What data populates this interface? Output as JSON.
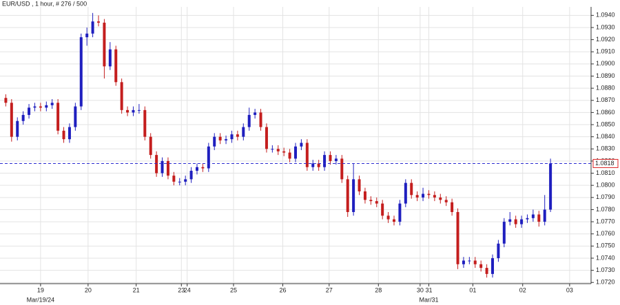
{
  "chart_data": {
    "type": "candlestick",
    "title": "EUR/USD , 1 hour, # 276 / 500",
    "up_color": "#1f1fbf",
    "down_color": "#c41e1e",
    "grid": true,
    "last_price": 1.0818,
    "last_price_color": "#2a2ad0",
    "xlim": [
      -1,
      101
    ],
    "ylim": [
      1.0719,
      1.0947
    ],
    "xticks": [
      {
        "value": 6.0,
        "label": "19"
      },
      {
        "value": 14.2,
        "label": "20"
      },
      {
        "value": 22.5,
        "label": "21"
      },
      {
        "value": 30.3,
        "label": "23"
      },
      {
        "value": 31.3,
        "label": "24"
      },
      {
        "value": 39.3,
        "label": "25"
      },
      {
        "value": 47.8,
        "label": "26"
      },
      {
        "value": 55.8,
        "label": "27"
      },
      {
        "value": 64.3,
        "label": "28"
      },
      {
        "value": 71.5,
        "label": "30"
      },
      {
        "value": 73.0,
        "label": "31"
      },
      {
        "value": 80.6,
        "label": "01"
      },
      {
        "value": 89.2,
        "label": "02"
      },
      {
        "value": 97.3,
        "label": "03"
      }
    ],
    "xticks2": [
      {
        "value": 6.0,
        "label": "Mar/19/24"
      },
      {
        "value": 73.0,
        "label": "Mar/31"
      }
    ],
    "yticks": [
      {
        "value": 1.072,
        "label": "1.0720"
      },
      {
        "value": 1.073,
        "label": "1.0730"
      },
      {
        "value": 1.074,
        "label": "1.0740"
      },
      {
        "value": 1.075,
        "label": "1.0750"
      },
      {
        "value": 1.076,
        "label": "1.0760"
      },
      {
        "value": 1.077,
        "label": "1.0770"
      },
      {
        "value": 1.078,
        "label": "1.0780"
      },
      {
        "value": 1.079,
        "label": "1.0790"
      },
      {
        "value": 1.08,
        "label": "1.0800"
      },
      {
        "value": 1.081,
        "label": "1.0810"
      },
      {
        "value": 1.082,
        "label": "1.0820"
      },
      {
        "value": 1.083,
        "label": "1.0830"
      },
      {
        "value": 1.084,
        "label": "1.0840"
      },
      {
        "value": 1.085,
        "label": "1.0850"
      },
      {
        "value": 1.086,
        "label": "1.0860"
      },
      {
        "value": 1.087,
        "label": "1.0870"
      },
      {
        "value": 1.088,
        "label": "1.0880"
      },
      {
        "value": 1.089,
        "label": "1.0890"
      },
      {
        "value": 1.09,
        "label": "1.0900"
      },
      {
        "value": 1.091,
        "label": "1.0910"
      },
      {
        "value": 1.092,
        "label": "1.0920"
      },
      {
        "value": 1.093,
        "label": "1.0930"
      },
      {
        "value": 1.094,
        "label": "1.0940"
      }
    ],
    "candles": [
      [
        1.0872,
        1.0875,
        1.0865,
        1.0868
      ],
      [
        1.0868,
        1.0871,
        1.0836,
        1.084
      ],
      [
        1.084,
        1.0856,
        1.0837,
        1.0853
      ],
      [
        1.0853,
        1.0861,
        1.085,
        1.0858
      ],
      [
        1.0858,
        1.0867,
        1.0855,
        1.0864
      ],
      [
        1.0864,
        1.0868,
        1.0861,
        1.0865
      ],
      [
        1.0865,
        1.0868,
        1.0861,
        1.0864
      ],
      [
        1.0864,
        1.0869,
        1.0861,
        1.0866
      ],
      [
        1.0866,
        1.0871,
        1.0863,
        1.0868
      ],
      [
        1.0868,
        1.0871,
        1.0842,
        1.0845
      ],
      [
        1.0845,
        1.0848,
        1.0835,
        1.0838
      ],
      [
        1.0838,
        1.0851,
        1.0835,
        1.0848
      ],
      [
        1.0848,
        1.0868,
        1.0845,
        1.0865
      ],
      [
        1.0865,
        1.0925,
        1.0862,
        1.0922
      ],
      [
        1.0922,
        1.093,
        1.0915,
        1.0925
      ],
      [
        1.0925,
        1.0942,
        1.0922,
        1.0935
      ],
      [
        1.0935,
        1.094,
        1.0931,
        1.0934
      ],
      [
        1.0934,
        1.0937,
        1.0888,
        1.0898
      ],
      [
        1.0898,
        1.0918,
        1.0895,
        1.0912
      ],
      [
        1.0912,
        1.0915,
        1.0882,
        1.0885
      ],
      [
        1.0885,
        1.0888,
        1.0859,
        1.0862
      ],
      [
        1.0862,
        1.0865,
        1.0857,
        1.086
      ],
      [
        1.086,
        1.0865,
        1.0857,
        1.0862
      ],
      [
        1.0862,
        1.0867,
        1.0859,
        1.0862
      ],
      [
        1.0862,
        1.0865,
        1.0837,
        1.084
      ],
      [
        1.084,
        1.0843,
        1.0822,
        1.0825
      ],
      [
        1.0825,
        1.0828,
        1.0807,
        1.081
      ],
      [
        1.081,
        1.0823,
        1.0807,
        1.082
      ],
      [
        1.082,
        1.0823,
        1.0805,
        1.0808
      ],
      [
        1.0808,
        1.0811,
        1.08,
        1.0803
      ],
      [
        1.0803,
        1.0806,
        1.08,
        1.0803
      ],
      [
        1.0803,
        1.0808,
        1.08,
        1.0805
      ],
      [
        1.0805,
        1.0815,
        1.0802,
        1.0812
      ],
      [
        1.0812,
        1.0818,
        1.0809,
        1.0815
      ],
      [
        1.0815,
        1.0818,
        1.0811,
        1.0814
      ],
      [
        1.0814,
        1.0835,
        1.0811,
        1.0832
      ],
      [
        1.0832,
        1.0843,
        1.0829,
        1.084
      ],
      [
        1.084,
        1.0843,
        1.0834,
        1.0837
      ],
      [
        1.0837,
        1.0841,
        1.0834,
        1.0838
      ],
      [
        1.0838,
        1.0845,
        1.0835,
        1.0842
      ],
      [
        1.0842,
        1.0845,
        1.0837,
        1.084
      ],
      [
        1.084,
        1.0851,
        1.0837,
        1.0848
      ],
      [
        1.0848,
        1.0864,
        1.0845,
        1.0858
      ],
      [
        1.0858,
        1.0863,
        1.0855,
        1.086
      ],
      [
        1.086,
        1.0863,
        1.0845,
        1.0848
      ],
      [
        1.0848,
        1.0851,
        1.0827,
        1.083
      ],
      [
        1.083,
        1.0833,
        1.0827,
        1.083
      ],
      [
        1.083,
        1.0833,
        1.0825,
        1.0828
      ],
      [
        1.0828,
        1.0831,
        1.0824,
        1.0827
      ],
      [
        1.0827,
        1.083,
        1.0819,
        1.0822
      ],
      [
        1.0822,
        1.0835,
        1.0819,
        1.0832
      ],
      [
        1.0832,
        1.0838,
        1.0829,
        1.0835
      ],
      [
        1.0835,
        1.0838,
        1.0812,
        1.0815
      ],
      [
        1.0815,
        1.0821,
        1.0812,
        1.0818
      ],
      [
        1.0818,
        1.0821,
        1.0812,
        1.0815
      ],
      [
        1.0815,
        1.0828,
        1.0812,
        1.0825
      ],
      [
        1.0825,
        1.0828,
        1.0817,
        1.082
      ],
      [
        1.082,
        1.0825,
        1.0817,
        1.0822
      ],
      [
        1.0822,
        1.0825,
        1.0802,
        1.0805
      ],
      [
        1.0805,
        1.0808,
        1.0774,
        1.0778
      ],
      [
        1.0778,
        1.0818,
        1.0775,
        1.0805
      ],
      [
        1.0805,
        1.0808,
        1.0792,
        1.0795
      ],
      [
        1.0795,
        1.0798,
        1.0785,
        1.0788
      ],
      [
        1.0788,
        1.0791,
        1.0784,
        1.0787
      ],
      [
        1.0787,
        1.079,
        1.0782,
        1.0785
      ],
      [
        1.0785,
        1.0788,
        1.0772,
        1.0775
      ],
      [
        1.0775,
        1.0778,
        1.0769,
        1.0772
      ],
      [
        1.0772,
        1.0775,
        1.0767,
        1.077
      ],
      [
        1.077,
        1.0788,
        1.0767,
        1.0785
      ],
      [
        1.0785,
        1.0805,
        1.0782,
        1.0802
      ],
      [
        1.0802,
        1.0805,
        1.0789,
        1.0792
      ],
      [
        1.0792,
        1.0795,
        1.0787,
        1.079
      ],
      [
        1.079,
        1.0798,
        1.0787,
        1.0793
      ],
      [
        1.0793,
        1.0796,
        1.0789,
        1.0792
      ],
      [
        1.0792,
        1.0795,
        1.0787,
        1.079
      ],
      [
        1.079,
        1.0793,
        1.0785,
        1.0788
      ],
      [
        1.0788,
        1.0791,
        1.0783,
        1.0786
      ],
      [
        1.0786,
        1.0789,
        1.0775,
        1.0778
      ],
      [
        1.0778,
        1.0781,
        1.0731,
        1.0735
      ],
      [
        1.0735,
        1.0741,
        1.0732,
        1.0738
      ],
      [
        1.0738,
        1.0741,
        1.0735,
        1.0738
      ],
      [
        1.0738,
        1.0741,
        1.0732,
        1.0735
      ],
      [
        1.0735,
        1.0738,
        1.0729,
        1.0732
      ],
      [
        1.0732,
        1.0735,
        1.0724,
        1.0727
      ],
      [
        1.0727,
        1.0743,
        1.0724,
        1.074
      ],
      [
        1.074,
        1.0755,
        1.0737,
        1.0752
      ],
      [
        1.0752,
        1.0773,
        1.0749,
        1.077
      ],
      [
        1.077,
        1.0778,
        1.0767,
        1.0772
      ],
      [
        1.0772,
        1.0775,
        1.0765,
        1.0768
      ],
      [
        1.0768,
        1.0775,
        1.0765,
        1.0772
      ],
      [
        1.0772,
        1.0776,
        1.0769,
        1.0773
      ],
      [
        1.0773,
        1.078,
        1.077,
        1.0776
      ],
      [
        1.0776,
        1.0779,
        1.0766,
        1.077
      ],
      [
        1.077,
        1.0792,
        1.0767,
        1.078
      ],
      [
        1.078,
        1.0822,
        1.0778,
        1.0818
      ]
    ]
  }
}
